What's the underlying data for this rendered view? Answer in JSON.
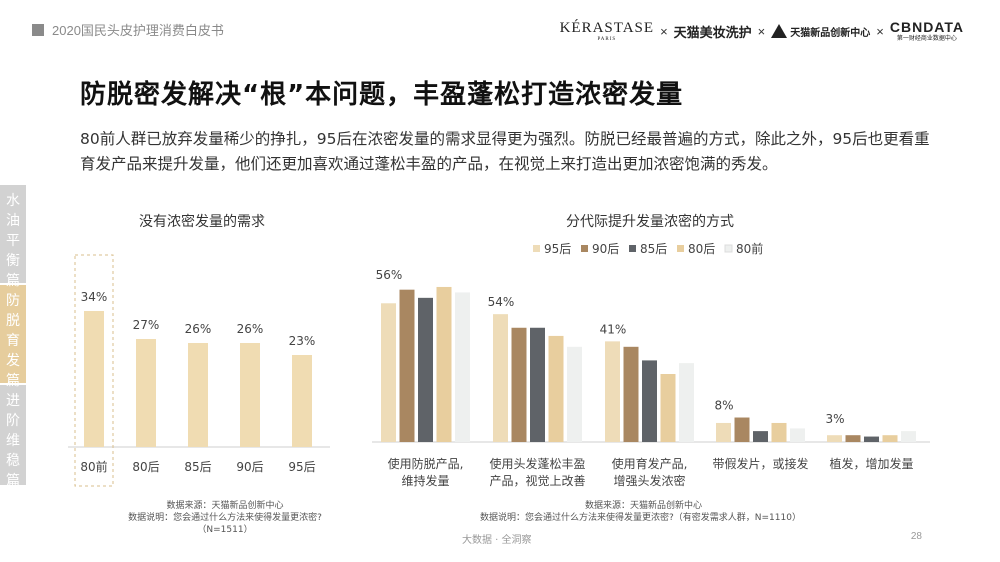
{
  "header": {
    "report_title": "2020国民头皮护理消费白皮书",
    "logos": {
      "kerastase": "KÉRASTASE",
      "kerastase_sub": "PARIS",
      "tmall_beauty": "天猫美妆洗护",
      "tmall_innovation": "天猫新品创新中心",
      "cbndata": "CBNDATA",
      "cbndata_sub": "第一财经商业数据中心",
      "separator": "×"
    }
  },
  "heading": "防脱密发解决“根”本问题，丰盈蓬松打造浓密发量",
  "description": "80前人群已放弃发量稀少的挣扎，95后在浓密发量的需求显得更为强烈。防脱已经最普遍的方式，除此之外，95后也更看重育发产品来提升发量，他们还更加喜欢通过蓬松丰盈的产品，在视觉上来打造出更加浓密饱满的秀发。",
  "sidebar": [
    {
      "label": [
        "水",
        "油",
        "平",
        "衡",
        "篇"
      ]
    },
    {
      "label": [
        "防",
        "脱",
        "育",
        "发",
        "篇"
      ]
    },
    {
      "label": [
        "进",
        "阶",
        "维",
        "稳",
        "篇"
      ]
    }
  ],
  "chart_data": [
    {
      "type": "bar",
      "title": "没有浓密发量的需求",
      "categories": [
        "80前",
        "80后",
        "85后",
        "90后",
        "95后"
      ],
      "values": [
        34,
        27,
        26,
        26,
        23
      ],
      "value_labels": [
        "34%",
        "27%",
        "26%",
        "26%",
        "23%"
      ],
      "highlight_index": 0,
      "bar_color": "#f0dcb2",
      "source": "数据来源：天猫新品创新中心",
      "note": "数据说明：您会通过什么方法来使得发量更浓密?",
      "sample": "（N=1511）"
    },
    {
      "type": "bar",
      "title": "分代际提升发量浓密的方式",
      "categories": [
        [
          "使用防脱产品,",
          "维持发量"
        ],
        [
          "使用头发蓬松丰盈",
          "产品，视觉上改善"
        ],
        [
          "使用育发产品,",
          "增强头发浓密"
        ],
        [
          "带假发片，或接发"
        ],
        [
          "植发，增加发量"
        ]
      ],
      "series": [
        {
          "name": "95后",
          "color": "#eedcb8",
          "values": [
            51,
            47,
            37,
            7,
            2.5
          ]
        },
        {
          "name": "90后",
          "color": "#a98761",
          "values": [
            56,
            42,
            35,
            9,
            2.5
          ]
        },
        {
          "name": "85后",
          "color": "#5f6368",
          "values": [
            53,
            42,
            30,
            4,
            2
          ]
        },
        {
          "name": "80后",
          "color": "#e8ce9e",
          "values": [
            57,
            39,
            25,
            7,
            2.5
          ]
        },
        {
          "name": "80前",
          "color": "#eef0ef",
          "values": [
            55,
            35,
            29,
            5,
            4
          ]
        }
      ],
      "group_labels": [
        "56%",
        "54%",
        "41%",
        "8%",
        "3%"
      ],
      "legend_position": "top",
      "source": "数据来源：天猫新品创新中心",
      "note": "数据说明：您会通过什么方法来使得发量更浓密?（有密发需求人群，N=1110）"
    }
  ],
  "footer": {
    "brand": "大数据 · 全洞察",
    "page": "28"
  }
}
